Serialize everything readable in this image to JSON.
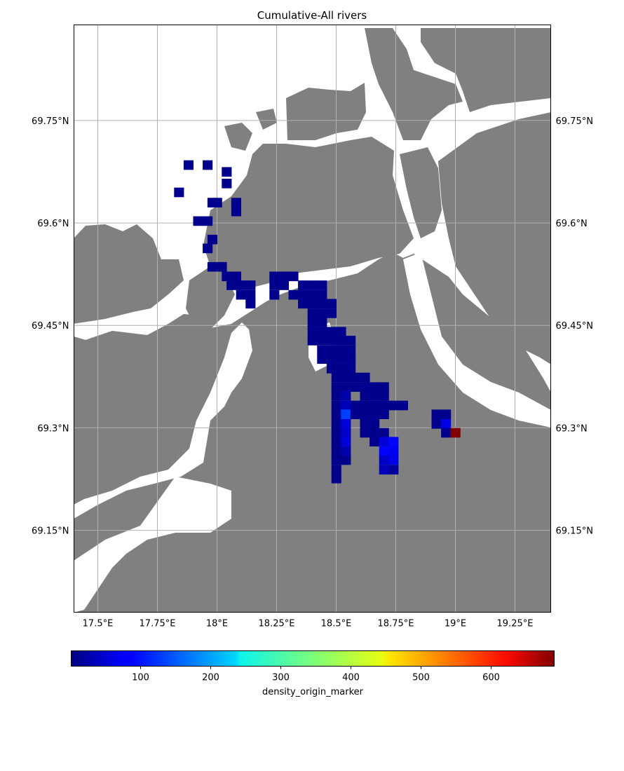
{
  "title": "Cumulative-All rivers",
  "map": {
    "lon_range": [
      17.4,
      19.4
    ],
    "lat_range": [
      69.03,
      69.89
    ],
    "grid": true,
    "lon_ticks": [
      {
        "value": 17.5,
        "label": "17.5°E"
      },
      {
        "value": 17.75,
        "label": "17.75°E"
      },
      {
        "value": 18.0,
        "label": "18°E"
      },
      {
        "value": 18.25,
        "label": "18.25°E"
      },
      {
        "value": 18.5,
        "label": "18.5°E"
      },
      {
        "value": 18.75,
        "label": "18.75°E"
      },
      {
        "value": 19.0,
        "label": "19°E"
      },
      {
        "value": 19.25,
        "label": "19.25°E"
      }
    ],
    "lat_ticks": [
      {
        "value": 69.75,
        "label": "69.75°N"
      },
      {
        "value": 69.6,
        "label": "69.6°N"
      },
      {
        "value": 69.45,
        "label": "69.45°N"
      },
      {
        "value": 69.3,
        "label": "69.3°N"
      },
      {
        "value": 69.15,
        "label": "69.15°N"
      }
    ],
    "colors": {
      "land": "#808080",
      "water": "#ffffff",
      "gridline": "#b0b0b0",
      "frame": "#000000"
    }
  },
  "colorbar": {
    "label": "density_origin_marker",
    "colormap": "jet",
    "range": [
      1,
      690
    ],
    "ticks": [
      100,
      200,
      300,
      400,
      500,
      600
    ]
  },
  "density_cells": {
    "cell_size_deg": [
      0.04,
      0.0135
    ],
    "points": [
      [
        17.88,
        69.685,
        10
      ],
      [
        17.96,
        69.685,
        10
      ],
      [
        17.84,
        69.645,
        10
      ],
      [
        18.04,
        69.675,
        10
      ],
      [
        18.04,
        69.658,
        10
      ],
      [
        17.98,
        69.63,
        10
      ],
      [
        18.0,
        69.63,
        10
      ],
      [
        18.08,
        69.63,
        10
      ],
      [
        18.08,
        69.617,
        10
      ],
      [
        17.92,
        69.603,
        10
      ],
      [
        17.96,
        69.603,
        10
      ],
      [
        17.96,
        69.563,
        10
      ],
      [
        17.98,
        69.576,
        10
      ],
      [
        17.98,
        69.536,
        10
      ],
      [
        18.02,
        69.536,
        10
      ],
      [
        18.04,
        69.522,
        10
      ],
      [
        18.08,
        69.522,
        10
      ],
      [
        18.06,
        69.509,
        10
      ],
      [
        18.1,
        69.509,
        10
      ],
      [
        18.14,
        69.509,
        10
      ],
      [
        18.1,
        69.495,
        10
      ],
      [
        18.14,
        69.495,
        10
      ],
      [
        18.14,
        69.482,
        10
      ],
      [
        18.24,
        69.522,
        10
      ],
      [
        18.28,
        69.522,
        10
      ],
      [
        18.32,
        69.522,
        10
      ],
      [
        18.24,
        69.509,
        10
      ],
      [
        18.24,
        69.495,
        10
      ],
      [
        18.28,
        69.509,
        10
      ],
      [
        18.32,
        69.495,
        10
      ],
      [
        18.36,
        69.509,
        10
      ],
      [
        18.4,
        69.509,
        10
      ],
      [
        18.44,
        69.509,
        10
      ],
      [
        18.36,
        69.495,
        10
      ],
      [
        18.4,
        69.495,
        10
      ],
      [
        18.44,
        69.495,
        10
      ],
      [
        18.36,
        69.482,
        10
      ],
      [
        18.4,
        69.482,
        10
      ],
      [
        18.44,
        69.482,
        10
      ],
      [
        18.48,
        69.482,
        10
      ],
      [
        18.4,
        69.468,
        10
      ],
      [
        18.44,
        69.468,
        10
      ],
      [
        18.48,
        69.468,
        10
      ],
      [
        18.4,
        69.455,
        10
      ],
      [
        18.44,
        69.455,
        10
      ],
      [
        18.4,
        69.441,
        10
      ],
      [
        18.44,
        69.441,
        10
      ],
      [
        18.48,
        69.441,
        10
      ],
      [
        18.52,
        69.441,
        10
      ],
      [
        18.4,
        69.428,
        10
      ],
      [
        18.44,
        69.428,
        10
      ],
      [
        18.48,
        69.428,
        10
      ],
      [
        18.52,
        69.428,
        10
      ],
      [
        18.56,
        69.428,
        10
      ],
      [
        18.44,
        69.414,
        10
      ],
      [
        18.48,
        69.414,
        10
      ],
      [
        18.52,
        69.414,
        10
      ],
      [
        18.56,
        69.414,
        10
      ],
      [
        18.44,
        69.401,
        10
      ],
      [
        18.48,
        69.401,
        10
      ],
      [
        18.52,
        69.401,
        10
      ],
      [
        18.56,
        69.401,
        10
      ],
      [
        18.48,
        69.387,
        10
      ],
      [
        18.52,
        69.387,
        10
      ],
      [
        18.56,
        69.387,
        10
      ],
      [
        18.5,
        69.374,
        10
      ],
      [
        18.54,
        69.374,
        10
      ],
      [
        18.58,
        69.374,
        10
      ],
      [
        18.62,
        69.374,
        10
      ],
      [
        18.5,
        69.36,
        10
      ],
      [
        18.54,
        69.36,
        10
      ],
      [
        18.58,
        69.36,
        10
      ],
      [
        18.62,
        69.36,
        10
      ],
      [
        18.66,
        69.36,
        10
      ],
      [
        18.7,
        69.36,
        10
      ],
      [
        18.5,
        69.347,
        10
      ],
      [
        18.54,
        69.347,
        30
      ],
      [
        18.62,
        69.347,
        10
      ],
      [
        18.66,
        69.347,
        10
      ],
      [
        18.7,
        69.347,
        10
      ],
      [
        18.5,
        69.333,
        10
      ],
      [
        18.54,
        69.333,
        40
      ],
      [
        18.58,
        69.333,
        10
      ],
      [
        18.62,
        69.333,
        10
      ],
      [
        18.66,
        69.333,
        10
      ],
      [
        18.7,
        69.333,
        10
      ],
      [
        18.74,
        69.333,
        10
      ],
      [
        18.78,
        69.333,
        10
      ],
      [
        18.5,
        69.32,
        10
      ],
      [
        18.54,
        69.32,
        130
      ],
      [
        18.58,
        69.32,
        10
      ],
      [
        18.62,
        69.32,
        10
      ],
      [
        18.66,
        69.32,
        10
      ],
      [
        18.7,
        69.32,
        10
      ],
      [
        18.5,
        69.306,
        10
      ],
      [
        18.54,
        69.306,
        60
      ],
      [
        18.62,
        69.306,
        10
      ],
      [
        18.66,
        69.306,
        10
      ],
      [
        18.5,
        69.293,
        10
      ],
      [
        18.54,
        69.293,
        50
      ],
      [
        18.62,
        69.293,
        10
      ],
      [
        18.66,
        69.293,
        10
      ],
      [
        18.7,
        69.293,
        10
      ],
      [
        18.5,
        69.28,
        10
      ],
      [
        18.54,
        69.28,
        60
      ],
      [
        18.66,
        69.28,
        10
      ],
      [
        18.7,
        69.28,
        60
      ],
      [
        18.74,
        69.28,
        90
      ],
      [
        18.5,
        69.266,
        10
      ],
      [
        18.54,
        69.266,
        30
      ],
      [
        18.7,
        69.266,
        90
      ],
      [
        18.74,
        69.266,
        80
      ],
      [
        18.5,
        69.253,
        10
      ],
      [
        18.54,
        69.253,
        10
      ],
      [
        18.7,
        69.253,
        50
      ],
      [
        18.74,
        69.253,
        70
      ],
      [
        18.5,
        69.239,
        10
      ],
      [
        18.7,
        69.239,
        40
      ],
      [
        18.74,
        69.239,
        20
      ],
      [
        18.5,
        69.226,
        10
      ],
      [
        18.92,
        69.32,
        10
      ],
      [
        18.96,
        69.32,
        10
      ],
      [
        18.92,
        69.306,
        10
      ],
      [
        18.96,
        69.306,
        70
      ],
      [
        18.96,
        69.293,
        10
      ],
      [
        19.0,
        69.293,
        690
      ]
    ]
  }
}
